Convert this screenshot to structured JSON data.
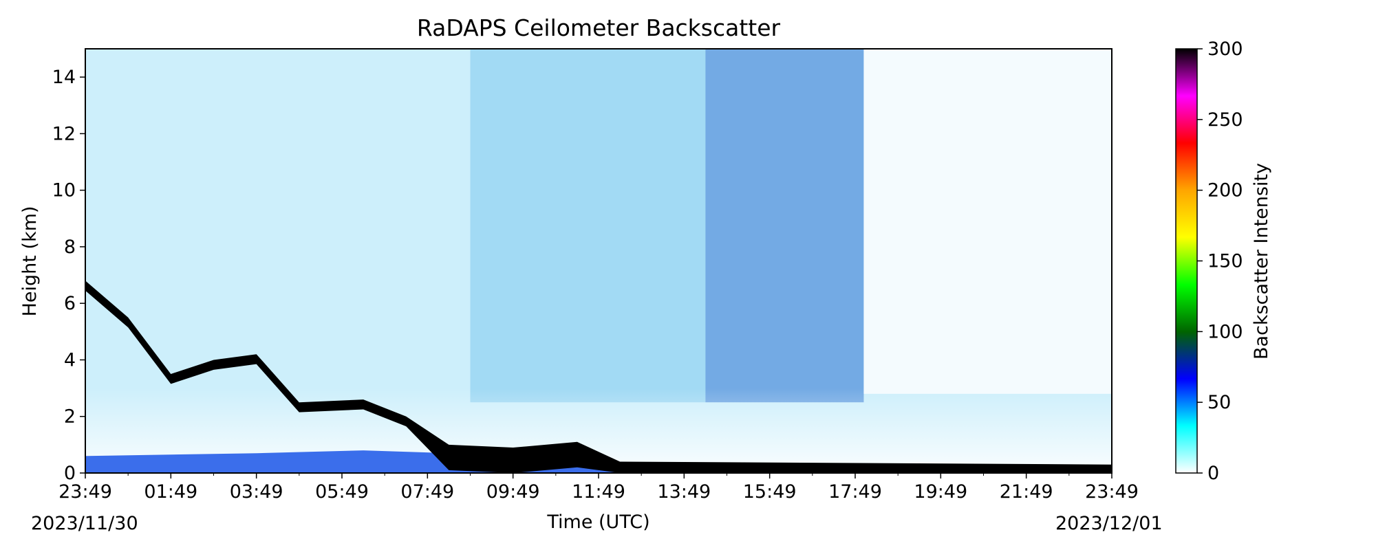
{
  "chart_data": {
    "type": "heatmap",
    "title": "RaDAPS Ceilometer Backscatter",
    "xlabel": "Time (UTC)",
    "ylabel": "Height (km)",
    "x_ticks": [
      "23:49",
      "01:49",
      "03:49",
      "05:49",
      "07:49",
      "09:49",
      "11:49",
      "13:49",
      "15:49",
      "17:49",
      "19:49",
      "21:49",
      "23:49"
    ],
    "x_range_hours": [
      0,
      24
    ],
    "date_start": "2023/11/30",
    "date_end": "2023/12/01",
    "y_ticks": [
      0,
      2,
      4,
      6,
      8,
      10,
      12,
      14
    ],
    "ylim": [
      0,
      15
    ],
    "colorbar": {
      "label": "Backscatter Intensity",
      "ticks": [
        0,
        50,
        100,
        150,
        200,
        250,
        300
      ],
      "range": [
        0,
        300
      ],
      "colors": [
        "#ffffff",
        "#00ffff",
        "#0000ff",
        "#006400",
        "#00ff00",
        "#ffff00",
        "#ffa500",
        "#ff0000",
        "#ff00ff",
        "#000000"
      ]
    },
    "features": {
      "surface_layer_top_km": [
        [
          0,
          0.6
        ],
        [
          4,
          0.7
        ],
        [
          6.5,
          0.8
        ],
        [
          8.5,
          0.7
        ],
        [
          10,
          0.4
        ],
        [
          12,
          0.3
        ],
        [
          24,
          0.25
        ]
      ],
      "cloud_base_km": [
        [
          0,
          6.8
        ],
        [
          1,
          5.5
        ],
        [
          2,
          3.5
        ],
        [
          3,
          4.0
        ],
        [
          4,
          4.2
        ],
        [
          5,
          2.5
        ],
        [
          6.5,
          2.6
        ],
        [
          7.5,
          2.0
        ],
        [
          8.5,
          1.0
        ],
        [
          10,
          0.9
        ],
        [
          11.5,
          1.1
        ],
        [
          12.5,
          0.4
        ],
        [
          24,
          0.3
        ]
      ],
      "clear_periods_hours": [
        [
          18.2,
          24
        ]
      ]
    }
  }
}
